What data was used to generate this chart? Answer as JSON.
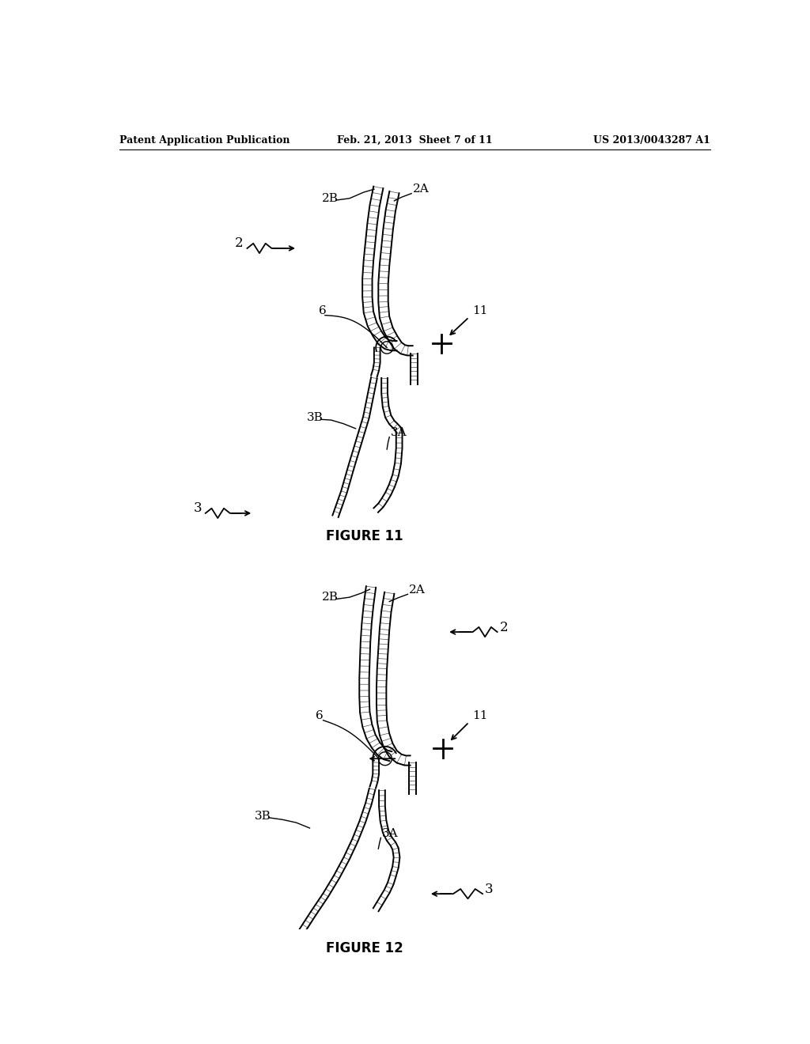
{
  "title_left": "Patent Application Publication",
  "title_center": "Feb. 21, 2013  Sheet 7 of 11",
  "title_right": "US 2013/0043287 A1",
  "fig1_caption": "FIGURE 11",
  "fig2_caption": "FIGURE 12",
  "bg_color": "#ffffff",
  "line_color": "#000000"
}
